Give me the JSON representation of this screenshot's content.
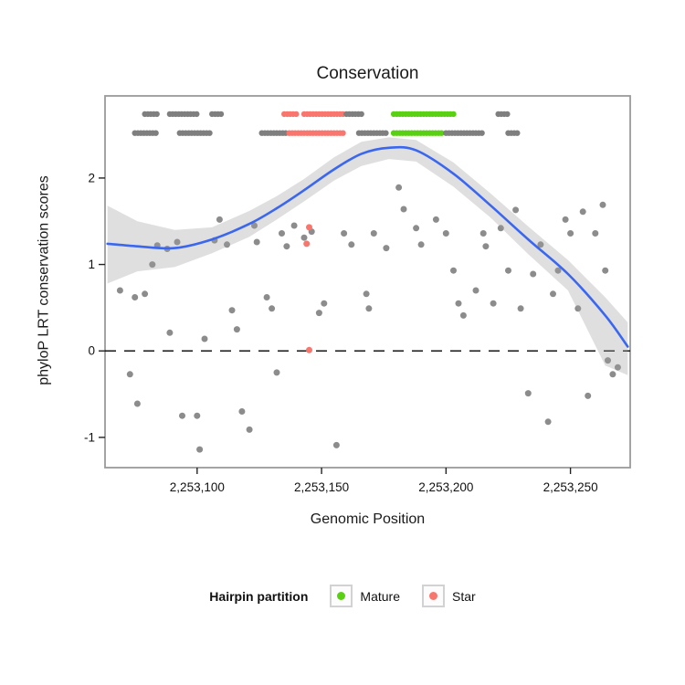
{
  "chart_data": {
    "type": "scatter",
    "title": "Conservation",
    "xlabel": "Genomic Position",
    "ylabel": "phyloP LRT conservation scores",
    "x_domain": [
      2253063,
      2253274
    ],
    "y_domain": [
      -1.35,
      2.95
    ],
    "x_ticks": [
      {
        "value": 2253100,
        "label": "2,253,100"
      },
      {
        "value": 2253150,
        "label": "2,253,150"
      },
      {
        "value": 2253200,
        "label": "2,253,200"
      },
      {
        "value": 2253250,
        "label": "2,253,250"
      }
    ],
    "y_ticks": [
      {
        "value": -1,
        "label": "-1"
      },
      {
        "value": 0,
        "label": "0"
      },
      {
        "value": 1,
        "label": "1"
      },
      {
        "value": 2,
        "label": "2"
      }
    ],
    "zero_line_y": 0,
    "colors": {
      "gray": "#7f7f7f",
      "mature": "#5ad012",
      "star": "#f8766d",
      "smooth": "#3a66f0",
      "band": "#9e9e9e",
      "panel_border": "#9a9a9a",
      "axis_text": "#111111"
    },
    "points_gray": [
      [
        2253069,
        0.7
      ],
      [
        2253075,
        0.62
      ],
      [
        2253079,
        0.66
      ],
      [
        2253073,
        -0.27
      ],
      [
        2253076,
        -0.61
      ],
      [
        2253082,
        1.0
      ],
      [
        2253084,
        1.22
      ],
      [
        2253088,
        1.18
      ],
      [
        2253092,
        1.26
      ],
      [
        2253089,
        0.21
      ],
      [
        2253094,
        -0.75
      ],
      [
        2253100,
        -0.75
      ],
      [
        2253101,
        -1.14
      ],
      [
        2253103,
        0.14
      ],
      [
        2253107,
        1.28
      ],
      [
        2253109,
        1.52
      ],
      [
        2253112,
        1.23
      ],
      [
        2253114,
        0.47
      ],
      [
        2253116,
        0.25
      ],
      [
        2253118,
        -0.7
      ],
      [
        2253121,
        -0.91
      ],
      [
        2253123,
        1.45
      ],
      [
        2253124,
        1.26
      ],
      [
        2253128,
        0.62
      ],
      [
        2253130,
        0.49
      ],
      [
        2253132,
        -0.25
      ],
      [
        2253134,
        1.36
      ],
      [
        2253136,
        1.21
      ],
      [
        2253139,
        1.45
      ],
      [
        2253143,
        1.31
      ],
      [
        2253146,
        1.38
      ],
      [
        2253149,
        0.44
      ],
      [
        2253151,
        0.55
      ],
      [
        2253156,
        -1.09
      ],
      [
        2253159,
        1.36
      ],
      [
        2253162,
        1.23
      ],
      [
        2253168,
        0.66
      ],
      [
        2253169,
        0.49
      ],
      [
        2253171,
        1.36
      ],
      [
        2253176,
        1.19
      ],
      [
        2253181,
        1.89
      ],
      [
        2253183,
        1.64
      ],
      [
        2253188,
        1.42
      ],
      [
        2253190,
        1.23
      ],
      [
        2253196,
        1.52
      ],
      [
        2253200,
        1.36
      ],
      [
        2253203,
        0.93
      ],
      [
        2253205,
        0.55
      ],
      [
        2253207,
        0.41
      ],
      [
        2253212,
        0.7
      ],
      [
        2253215,
        1.36
      ],
      [
        2253216,
        1.21
      ],
      [
        2253219,
        0.55
      ],
      [
        2253222,
        1.42
      ],
      [
        2253225,
        0.93
      ],
      [
        2253228,
        1.63
      ],
      [
        2253230,
        0.49
      ],
      [
        2253233,
        -0.49
      ],
      [
        2253235,
        0.89
      ],
      [
        2253238,
        1.23
      ],
      [
        2253241,
        -0.82
      ],
      [
        2253243,
        0.66
      ],
      [
        2253245,
        0.93
      ],
      [
        2253248,
        1.52
      ],
      [
        2253250,
        1.36
      ],
      [
        2253253,
        0.49
      ],
      [
        2253255,
        1.61
      ],
      [
        2253257,
        -0.52
      ],
      [
        2253260,
        1.36
      ],
      [
        2253263,
        1.69
      ],
      [
        2253264,
        0.93
      ],
      [
        2253265,
        -0.11
      ],
      [
        2253267,
        -0.27
      ],
      [
        2253269,
        -0.19
      ]
    ],
    "points_star": [
      [
        2253145,
        1.43
      ],
      [
        2253144,
        1.24
      ],
      [
        2253145,
        0.01
      ]
    ],
    "partition_rows": [
      {
        "y": 2.74,
        "runs": [
          {
            "from": 2253079,
            "to": 2253085,
            "group": "gray"
          },
          {
            "from": 2253089,
            "to": 2253101,
            "group": "gray"
          },
          {
            "from": 2253106,
            "to": 2253110,
            "group": "gray"
          },
          {
            "from": 2253135,
            "to": 2253140,
            "group": "star"
          },
          {
            "from": 2253143,
            "to": 2253159,
            "group": "star"
          },
          {
            "from": 2253160,
            "to": 2253167,
            "group": "gray"
          },
          {
            "from": 2253179,
            "to": 2253204,
            "group": "mature"
          },
          {
            "from": 2253221,
            "to": 2253225,
            "group": "gray"
          }
        ]
      },
      {
        "y": 2.52,
        "runs": [
          {
            "from": 2253075,
            "to": 2253084,
            "group": "gray"
          },
          {
            "from": 2253093,
            "to": 2253106,
            "group": "gray"
          },
          {
            "from": 2253126,
            "to": 2253136,
            "group": "gray"
          },
          {
            "from": 2253137,
            "to": 2253159,
            "group": "star"
          },
          {
            "from": 2253165,
            "to": 2253177,
            "group": "gray"
          },
          {
            "from": 2253179,
            "to": 2253199,
            "group": "mature"
          },
          {
            "from": 2253200,
            "to": 2253215,
            "group": "gray"
          },
          {
            "from": 2253225,
            "to": 2253229,
            "group": "gray"
          }
        ]
      }
    ],
    "smooth": {
      "x": [
        2253064,
        2253076,
        2253091,
        2253106,
        2253121,
        2253132,
        2253143,
        2253155,
        2253166,
        2253177,
        2253188,
        2253203,
        2253218,
        2253233,
        2253249,
        2253264,
        2253273
      ],
      "y": [
        1.24,
        1.21,
        1.19,
        1.29,
        1.47,
        1.65,
        1.86,
        2.1,
        2.28,
        2.35,
        2.32,
        2.05,
        1.68,
        1.29,
        0.89,
        0.41,
        0.05
      ],
      "upper": [
        1.68,
        1.5,
        1.4,
        1.43,
        1.62,
        1.79,
        1.99,
        2.24,
        2.42,
        2.47,
        2.44,
        2.18,
        1.82,
        1.44,
        1.05,
        0.62,
        0.33
      ],
      "lower": [
        0.78,
        0.92,
        0.97,
        1.13,
        1.32,
        1.52,
        1.73,
        1.97,
        2.14,
        2.22,
        2.19,
        1.9,
        1.54,
        1.12,
        0.7,
        -0.17,
        -0.28
      ]
    }
  },
  "legend": {
    "title": "Hairpin partition",
    "items": [
      {
        "label": "Mature",
        "color_key": "mature"
      },
      {
        "label": "Star",
        "color_key": "star"
      }
    ]
  }
}
